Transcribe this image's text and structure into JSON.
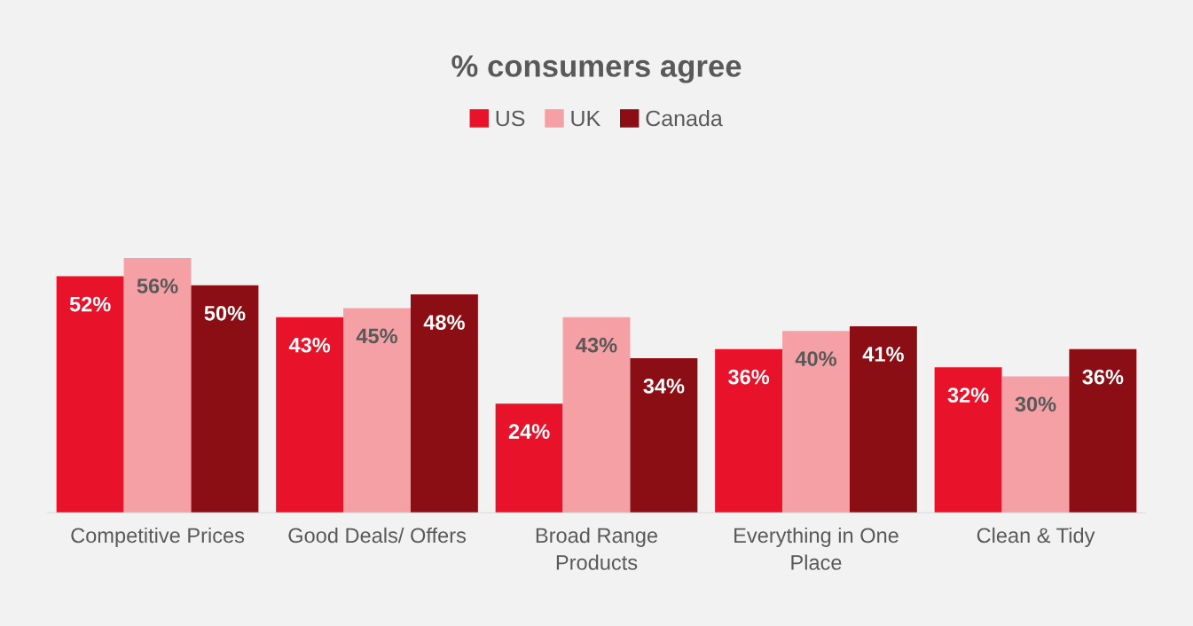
{
  "chart_data": {
    "type": "bar",
    "title": "% consumers agree",
    "categories": [
      "Competitive Prices",
      "Good Deals/ Offers",
      "Broad Range Products",
      "Everything in One Place",
      "Clean & Tidy"
    ],
    "series": [
      {
        "name": "US",
        "color": "#e8132a",
        "values": [
          52,
          43,
          24,
          36,
          32
        ],
        "value_labels": [
          "52%",
          "43%",
          "24%",
          "36%",
          "32%"
        ]
      },
      {
        "name": "UK",
        "color": "#f4a0a5",
        "values": [
          56,
          45,
          43,
          40,
          30
        ],
        "value_labels": [
          "56%",
          "45%",
          "43%",
          "40%",
          "30%"
        ]
      },
      {
        "name": "Canada",
        "color": "#8b0e14",
        "values": [
          50,
          48,
          34,
          41,
          36
        ],
        "value_labels": [
          "50%",
          "48%",
          "34%",
          "41%",
          "36%"
        ]
      }
    ],
    "legend": "top",
    "grid": false
  }
}
